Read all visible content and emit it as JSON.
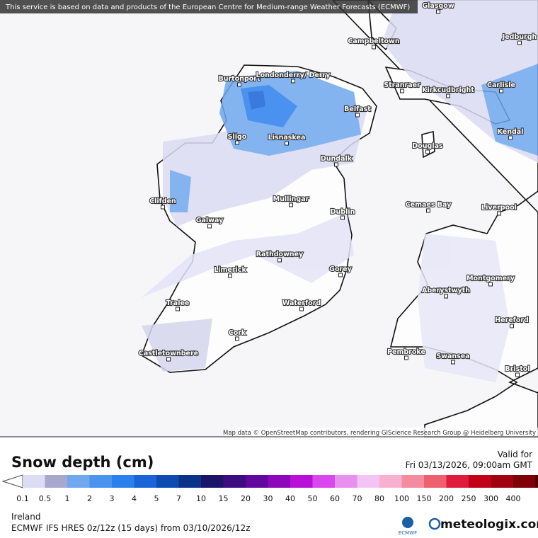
{
  "banner": "This service is based on data and products of the European Centre for Medium-range Weather Forecasts (ECMWF)",
  "map": {
    "places": [
      "Glasgow",
      "Campbeltown",
      "Jedburgh",
      "Burtonport",
      "Londonderry/ Derry",
      "Stranraer",
      "Kirkcudbright",
      "Carlisle",
      "Belfast",
      "Sligo",
      "Lisnaskea",
      "Kendal",
      "Douglas",
      "Dundalk",
      "Clifden",
      "Mullingar",
      "Cemaes Bay",
      "Liverpool",
      "Dublin",
      "Galway",
      "Rathdowney",
      "Limerick",
      "Gorey",
      "Montgomery",
      "Aberystwyth",
      "Tralee",
      "Waterford",
      "Hereford",
      "Cork",
      "Pembroke",
      "Castletownbere",
      "Swansea",
      "Bristol"
    ],
    "attribution": "Map data © OpenStreetMap contributors, rendering GIScience Research Group @ Heidelberg University"
  },
  "legend": {
    "title": "Snow depth (cm)",
    "valid_label": "Valid for",
    "valid_time": "Fri 03/13/2026, 09:00am GMT",
    "ticks": [
      "0.1",
      "0.5",
      "1",
      "2",
      "3",
      "4",
      "5",
      "7",
      "10",
      "15",
      "20",
      "30",
      "40",
      "50",
      "60",
      "70",
      "80",
      "100",
      "150",
      "200",
      "250",
      "300",
      "400"
    ],
    "colors": [
      "#dcdcf4",
      "#a8a8cc",
      "#6ea8ee",
      "#4a94ee",
      "#2c80ee",
      "#1a64d8",
      "#0c4cb0",
      "#0a3488",
      "#1c1468",
      "#3c0c80",
      "#62089c",
      "#8c08b8",
      "#b810d8",
      "#d848ec",
      "#e890f0",
      "#f4c4f4",
      "#f8b0d0",
      "#f48ca0",
      "#ec6070",
      "#e01c3c",
      "#c40018",
      "#a00010",
      "#800008",
      "#500000"
    ]
  },
  "footer": {
    "region": "Ireland",
    "model": "ECMWF IFS HRES 0z/12z (15 days) from 03/10/2026/12z",
    "provider": "ECMWF",
    "brand": "meteologix.com"
  }
}
